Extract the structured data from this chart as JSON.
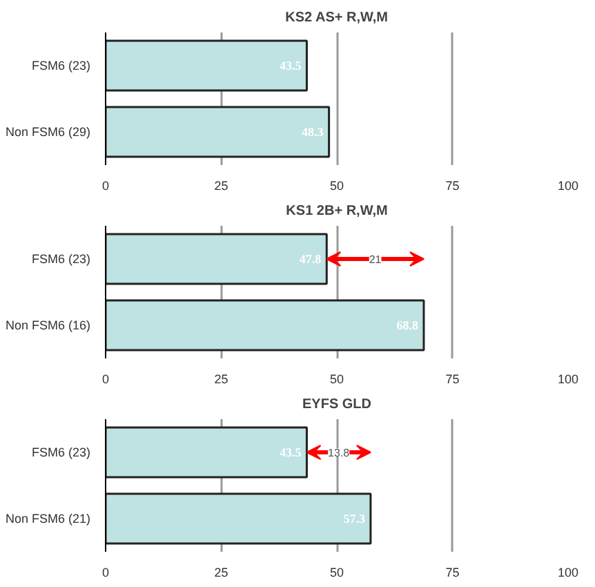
{
  "chart_data": [
    {
      "type": "bar",
      "title": "KS2 AS+ R,W,M",
      "orientation": "horizontal",
      "categories": [
        "FSM6 (23)",
        "Non FSM6 (29)"
      ],
      "values": [
        43.5,
        48.3
      ],
      "value_labels": [
        "43.5",
        "48.3"
      ],
      "color": "#bfe2e2",
      "xlim": [
        0,
        100
      ],
      "xticks": [
        0,
        25,
        50,
        75,
        100
      ],
      "grid": "x"
    },
    {
      "type": "bar",
      "title": "KS1 2B+ R,W,M",
      "orientation": "horizontal",
      "categories": [
        "FSM6 (23)",
        "Non FSM6 (16)"
      ],
      "values": [
        47.8,
        68.8
      ],
      "value_labels": [
        "47.8",
        "68.8"
      ],
      "color": "#bfe2e2",
      "xlim": [
        0,
        100
      ],
      "xticks": [
        0,
        25,
        50,
        75,
        100
      ],
      "grid": "x",
      "annotations": [
        {
          "text": "21",
          "x": 58.3,
          "y": "FSM6 (23)"
        }
      ]
    },
    {
      "type": "bar",
      "title": "EYFS GLD",
      "orientation": "horizontal",
      "categories": [
        "FSM6 (23)",
        "Non FSM6 (21)"
      ],
      "values": [
        43.5,
        57.3
      ],
      "value_labels": [
        "43.5",
        "57.3"
      ],
      "color": "#bfe2e2",
      "xlim": [
        0,
        100
      ],
      "xticks": [
        0,
        25,
        50,
        75,
        100
      ],
      "grid": "x",
      "annotations": [
        {
          "text": "13.8",
          "x": 50.4,
          "y": "FSM6 (23)"
        }
      ]
    }
  ]
}
